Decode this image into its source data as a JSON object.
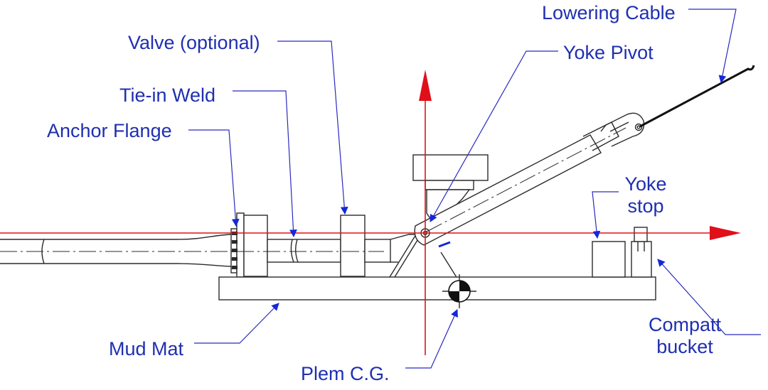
{
  "colors": {
    "label": "#1f2fb0",
    "leader": "#2b2bc0",
    "axis": "#e0101a",
    "outline": "#2a2a2a",
    "background": "#ffffff",
    "frame": "#000000"
  },
  "labels": {
    "lowering_cable": "Lowering Cable",
    "yoke_pivot": "Yoke Pivot",
    "valve": "Valve (optional)",
    "tie_in_weld": "Tie-in Weld",
    "anchor_flange": "Anchor Flange",
    "yoke_stop_line1": "Yoke",
    "yoke_stop_line2": "stop",
    "mud_mat": "Mud Mat",
    "plem_cg": "Plem C.G.",
    "compatt_line1": "Compatt",
    "compatt_line2": "bucket"
  }
}
